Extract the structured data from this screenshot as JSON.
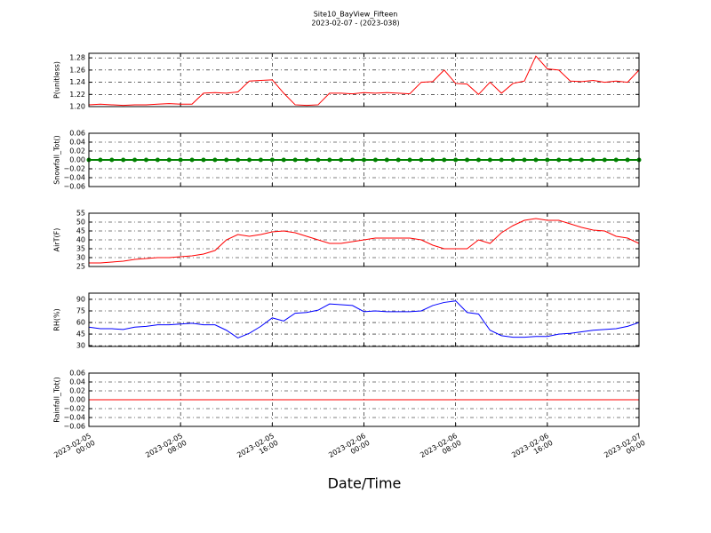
{
  "title": "Site10_BayView_Fifteen",
  "subtitle": "2023-02-07 - (2023-038)",
  "xlabel": "Date/Time",
  "chart_data": [
    {
      "type": "line",
      "ylabel": "P(unitless)",
      "color": "#ff0000",
      "grid": true,
      "xlim": [
        "2023-02-05 00:00",
        "2023-02-07 00:00"
      ],
      "xticks": [
        "2023-02-05 00:00",
        "2023-02-05 08:00",
        "2023-02-05 16:00",
        "2023-02-06 00:00",
        "2023-02-06 08:00",
        "2023-02-06 16:00",
        "2023-02-07 00:00"
      ],
      "ylim": [
        1.2,
        1.2875
      ],
      "yticks": [
        {
          "value": 1.2,
          "label": "1.20"
        },
        {
          "value": 1.22,
          "label": "1.22"
        },
        {
          "value": 1.24,
          "label": "1.24"
        },
        {
          "value": 1.26,
          "label": "1.26"
        },
        {
          "value": 1.28,
          "label": "1.28"
        }
      ],
      "x": [
        "2023-02-05 00:00",
        "2023-02-05 01:00",
        "2023-02-05 02:00",
        "2023-02-05 03:00",
        "2023-02-05 04:00",
        "2023-02-05 05:00",
        "2023-02-05 06:00",
        "2023-02-05 07:00",
        "2023-02-05 08:00",
        "2023-02-05 09:00",
        "2023-02-05 10:00",
        "2023-02-05 11:00",
        "2023-02-05 12:00",
        "2023-02-05 13:00",
        "2023-02-05 14:00",
        "2023-02-05 15:00",
        "2023-02-05 16:00",
        "2023-02-05 17:00",
        "2023-02-05 18:00",
        "2023-02-05 19:00",
        "2023-02-05 20:00",
        "2023-02-05 21:00",
        "2023-02-05 22:00",
        "2023-02-05 23:00",
        "2023-02-06 00:00",
        "2023-02-06 01:00",
        "2023-02-06 02:00",
        "2023-02-06 03:00",
        "2023-02-06 04:00",
        "2023-02-06 05:00",
        "2023-02-06 06:00",
        "2023-02-06 07:00",
        "2023-02-06 08:00",
        "2023-02-06 09:00",
        "2023-02-06 10:00",
        "2023-02-06 11:00",
        "2023-02-06 12:00",
        "2023-02-06 13:00",
        "2023-02-06 14:00",
        "2023-02-06 15:00",
        "2023-02-06 16:00",
        "2023-02-06 17:00",
        "2023-02-06 18:00",
        "2023-02-06 19:00",
        "2023-02-06 20:00",
        "2023-02-06 21:00",
        "2023-02-06 22:00",
        "2023-02-06 23:00",
        "2023-02-07 00:00"
      ],
      "values": [
        1.203,
        1.204,
        1.203,
        1.202,
        1.203,
        1.203,
        1.204,
        1.205,
        1.204,
        1.204,
        1.222,
        1.223,
        1.222,
        1.224,
        1.242,
        1.243,
        1.244,
        1.222,
        1.203,
        1.202,
        1.203,
        1.222,
        1.222,
        1.221,
        1.223,
        1.222,
        1.223,
        1.222,
        1.221,
        1.24,
        1.241,
        1.26,
        1.238,
        1.237,
        1.22,
        1.24,
        1.222,
        1.238,
        1.242,
        1.283,
        1.262,
        1.26,
        1.242,
        1.241,
        1.243,
        1.24,
        1.242,
        1.24,
        1.26
      ]
    },
    {
      "type": "line",
      "ylabel": "Snowfall_Tot()",
      "color": "#008000",
      "marker": true,
      "grid": true,
      "xlim": [
        "2023-02-05 00:00",
        "2023-02-07 00:00"
      ],
      "xticks": [
        "2023-02-05 00:00",
        "2023-02-05 08:00",
        "2023-02-05 16:00",
        "2023-02-06 00:00",
        "2023-02-06 08:00",
        "2023-02-06 16:00",
        "2023-02-07 00:00"
      ],
      "ylim": [
        -0.06,
        0.06
      ],
      "yticks": [
        {
          "value": -0.06,
          "label": "−0.06"
        },
        {
          "value": -0.04,
          "label": "−0.04"
        },
        {
          "value": -0.02,
          "label": "−0.02"
        },
        {
          "value": 0,
          "label": "0.00"
        },
        {
          "value": 0.02,
          "label": "0.02"
        },
        {
          "value": 0.04,
          "label": "0.04"
        },
        {
          "value": 0.06,
          "label": "0.06"
        }
      ],
      "x": [
        "2023-02-05 00:00",
        "2023-02-05 01:00",
        "2023-02-05 02:00",
        "2023-02-05 03:00",
        "2023-02-05 04:00",
        "2023-02-05 05:00",
        "2023-02-05 06:00",
        "2023-02-05 07:00",
        "2023-02-05 08:00",
        "2023-02-05 09:00",
        "2023-02-05 10:00",
        "2023-02-05 11:00",
        "2023-02-05 12:00",
        "2023-02-05 13:00",
        "2023-02-05 14:00",
        "2023-02-05 15:00",
        "2023-02-05 16:00",
        "2023-02-05 17:00",
        "2023-02-05 18:00",
        "2023-02-05 19:00",
        "2023-02-05 20:00",
        "2023-02-05 21:00",
        "2023-02-05 22:00",
        "2023-02-05 23:00",
        "2023-02-06 00:00",
        "2023-02-06 01:00",
        "2023-02-06 02:00",
        "2023-02-06 03:00",
        "2023-02-06 04:00",
        "2023-02-06 05:00",
        "2023-02-06 06:00",
        "2023-02-06 07:00",
        "2023-02-06 08:00",
        "2023-02-06 09:00",
        "2023-02-06 10:00",
        "2023-02-06 11:00",
        "2023-02-06 12:00",
        "2023-02-06 13:00",
        "2023-02-06 14:00",
        "2023-02-06 15:00",
        "2023-02-06 16:00",
        "2023-02-06 17:00",
        "2023-02-06 18:00",
        "2023-02-06 19:00",
        "2023-02-06 20:00",
        "2023-02-06 21:00",
        "2023-02-06 22:00",
        "2023-02-06 23:00",
        "2023-02-07 00:00"
      ],
      "values": [
        0,
        0,
        0,
        0,
        0,
        0,
        0,
        0,
        0,
        0,
        0,
        0,
        0,
        0,
        0,
        0,
        0,
        0,
        0,
        0,
        0,
        0,
        0,
        0,
        0,
        0,
        0,
        0,
        0,
        0,
        0,
        0,
        0,
        0,
        0,
        0,
        0,
        0,
        0,
        0,
        0,
        0,
        0,
        0,
        0,
        0,
        0,
        0,
        0
      ]
    },
    {
      "type": "line",
      "ylabel": "AirT(F)",
      "color": "#ff0000",
      "grid": true,
      "xlim": [
        "2023-02-05 00:00",
        "2023-02-07 00:00"
      ],
      "xticks": [
        "2023-02-05 00:00",
        "2023-02-05 08:00",
        "2023-02-05 16:00",
        "2023-02-06 00:00",
        "2023-02-06 08:00",
        "2023-02-06 16:00",
        "2023-02-07 00:00"
      ],
      "ylim": [
        25,
        55
      ],
      "yticks": [
        25,
        30,
        35,
        40,
        45,
        50,
        55
      ],
      "x": [
        "2023-02-05 00:00",
        "2023-02-05 01:00",
        "2023-02-05 02:00",
        "2023-02-05 03:00",
        "2023-02-05 04:00",
        "2023-02-05 05:00",
        "2023-02-05 06:00",
        "2023-02-05 07:00",
        "2023-02-05 08:00",
        "2023-02-05 09:00",
        "2023-02-05 10:00",
        "2023-02-05 11:00",
        "2023-02-05 12:00",
        "2023-02-05 13:00",
        "2023-02-05 14:00",
        "2023-02-05 15:00",
        "2023-02-05 16:00",
        "2023-02-05 17:00",
        "2023-02-05 18:00",
        "2023-02-05 19:00",
        "2023-02-05 20:00",
        "2023-02-05 21:00",
        "2023-02-05 22:00",
        "2023-02-05 23:00",
        "2023-02-06 00:00",
        "2023-02-06 01:00",
        "2023-02-06 02:00",
        "2023-02-06 03:00",
        "2023-02-06 04:00",
        "2023-02-06 05:00",
        "2023-02-06 06:00",
        "2023-02-06 07:00",
        "2023-02-06 08:00",
        "2023-02-06 09:00",
        "2023-02-06 10:00",
        "2023-02-06 11:00",
        "2023-02-06 12:00",
        "2023-02-06 13:00",
        "2023-02-06 14:00",
        "2023-02-06 15:00",
        "2023-02-06 16:00",
        "2023-02-06 17:00",
        "2023-02-06 18:00",
        "2023-02-06 19:00",
        "2023-02-06 20:00",
        "2023-02-06 21:00",
        "2023-02-06 22:00",
        "2023-02-06 23:00",
        "2023-02-07 00:00"
      ],
      "values": [
        27,
        27,
        27.5,
        28,
        29,
        29.5,
        30,
        30,
        30.5,
        31,
        32,
        34,
        40,
        43,
        42,
        43,
        44.5,
        45,
        44,
        42,
        40,
        38,
        38,
        39,
        40,
        41,
        41,
        41,
        41,
        40,
        37,
        35,
        35,
        35,
        40,
        38,
        44,
        48,
        51,
        52,
        51,
        51,
        49,
        47,
        45.5,
        45,
        42,
        41,
        38
      ]
    },
    {
      "type": "line",
      "ylabel": "RH(%)",
      "color": "#0000ff",
      "grid": true,
      "xlim": [
        "2023-02-05 00:00",
        "2023-02-07 00:00"
      ],
      "xticks": [
        "2023-02-05 00:00",
        "2023-02-05 08:00",
        "2023-02-05 16:00",
        "2023-02-06 00:00",
        "2023-02-06 08:00",
        "2023-02-06 16:00",
        "2023-02-07 00:00"
      ],
      "ylim": [
        29,
        98
      ],
      "yticks": [
        30,
        45,
        60,
        75,
        90
      ],
      "x": [
        "2023-02-05 00:00",
        "2023-02-05 01:00",
        "2023-02-05 02:00",
        "2023-02-05 03:00",
        "2023-02-05 04:00",
        "2023-02-05 05:00",
        "2023-02-05 06:00",
        "2023-02-05 07:00",
        "2023-02-05 08:00",
        "2023-02-05 09:00",
        "2023-02-05 10:00",
        "2023-02-05 11:00",
        "2023-02-05 12:00",
        "2023-02-05 13:00",
        "2023-02-05 14:00",
        "2023-02-05 15:00",
        "2023-02-05 16:00",
        "2023-02-05 17:00",
        "2023-02-05 18:00",
        "2023-02-05 19:00",
        "2023-02-05 20:00",
        "2023-02-05 21:00",
        "2023-02-05 22:00",
        "2023-02-05 23:00",
        "2023-02-06 00:00",
        "2023-02-06 01:00",
        "2023-02-06 02:00",
        "2023-02-06 03:00",
        "2023-02-06 04:00",
        "2023-02-06 05:00",
        "2023-02-06 06:00",
        "2023-02-06 07:00",
        "2023-02-06 08:00",
        "2023-02-06 09:00",
        "2023-02-06 10:00",
        "2023-02-06 11:00",
        "2023-02-06 12:00",
        "2023-02-06 13:00",
        "2023-02-06 14:00",
        "2023-02-06 15:00",
        "2023-02-06 16:00",
        "2023-02-06 17:00",
        "2023-02-06 18:00",
        "2023-02-06 19:00",
        "2023-02-06 20:00",
        "2023-02-06 21:00",
        "2023-02-06 22:00",
        "2023-02-06 23:00",
        "2023-02-07 00:00"
      ],
      "values": [
        54,
        52,
        52,
        51,
        54,
        55,
        57,
        57,
        58,
        59,
        57,
        57,
        50,
        40,
        46,
        55,
        66,
        62,
        72,
        73,
        76,
        84,
        83,
        82,
        74,
        75,
        74,
        74,
        74,
        75,
        82,
        86,
        88,
        73,
        71,
        50,
        43,
        41,
        41,
        42,
        42,
        45,
        46,
        48,
        50,
        51,
        52,
        55,
        60
      ]
    },
    {
      "type": "line",
      "ylabel": "Rainfall_Tot()",
      "color": "#ff0000",
      "grid": true,
      "xlim": [
        "2023-02-05 00:00",
        "2023-02-07 00:00"
      ],
      "xticks": [
        {
          "value": "2023-02-05 00:00",
          "label": "2023-02-05\n00:00"
        },
        {
          "value": "2023-02-05 08:00",
          "label": "2023-02-05\n08:00"
        },
        {
          "value": "2023-02-05 16:00",
          "label": "2023-02-05\n16:00"
        },
        {
          "value": "2023-02-06 00:00",
          "label": "2023-02-06\n00:00"
        },
        {
          "value": "2023-02-06 08:00",
          "label": "2023-02-06\n08:00"
        },
        {
          "value": "2023-02-06 16:00",
          "label": "2023-02-06\n16:00"
        },
        {
          "value": "2023-02-07 00:00",
          "label": "2023-02-07\n00:00"
        }
      ],
      "ylim": [
        -0.06,
        0.06
      ],
      "yticks": [
        {
          "value": -0.06,
          "label": "−0.06"
        },
        {
          "value": -0.04,
          "label": "−0.04"
        },
        {
          "value": -0.02,
          "label": "−0.02"
        },
        {
          "value": 0,
          "label": "0.00"
        },
        {
          "value": 0.02,
          "label": "0.02"
        },
        {
          "value": 0.04,
          "label": "0.04"
        },
        {
          "value": 0.06,
          "label": "0.06"
        }
      ],
      "x": [
        "2023-02-05 00:00",
        "2023-02-05 01:00",
        "2023-02-05 02:00",
        "2023-02-05 03:00",
        "2023-02-05 04:00",
        "2023-02-05 05:00",
        "2023-02-05 06:00",
        "2023-02-05 07:00",
        "2023-02-05 08:00",
        "2023-02-05 09:00",
        "2023-02-05 10:00",
        "2023-02-05 11:00",
        "2023-02-05 12:00",
        "2023-02-05 13:00",
        "2023-02-05 14:00",
        "2023-02-05 15:00",
        "2023-02-05 16:00",
        "2023-02-05 17:00",
        "2023-02-05 18:00",
        "2023-02-05 19:00",
        "2023-02-05 20:00",
        "2023-02-05 21:00",
        "2023-02-05 22:00",
        "2023-02-05 23:00",
        "2023-02-06 00:00",
        "2023-02-06 01:00",
        "2023-02-06 02:00",
        "2023-02-06 03:00",
        "2023-02-06 04:00",
        "2023-02-06 05:00",
        "2023-02-06 06:00",
        "2023-02-06 07:00",
        "2023-02-06 08:00",
        "2023-02-06 09:00",
        "2023-02-06 10:00",
        "2023-02-06 11:00",
        "2023-02-06 12:00",
        "2023-02-06 13:00",
        "2023-02-06 14:00",
        "2023-02-06 15:00",
        "2023-02-06 16:00",
        "2023-02-06 17:00",
        "2023-02-06 18:00",
        "2023-02-06 19:00",
        "2023-02-06 20:00",
        "2023-02-06 21:00",
        "2023-02-06 22:00",
        "2023-02-06 23:00",
        "2023-02-07 00:00"
      ],
      "values": [
        0,
        0,
        0,
        0,
        0,
        0,
        0,
        0,
        0,
        0,
        0,
        0,
        0,
        0,
        0,
        0,
        0,
        0,
        0,
        0,
        0,
        0,
        0,
        0,
        0,
        0,
        0,
        0,
        0,
        0,
        0,
        0,
        0,
        0,
        0,
        0,
        0,
        0,
        0,
        0,
        0,
        0,
        0,
        0,
        0,
        0,
        0,
        0,
        0
      ]
    }
  ]
}
